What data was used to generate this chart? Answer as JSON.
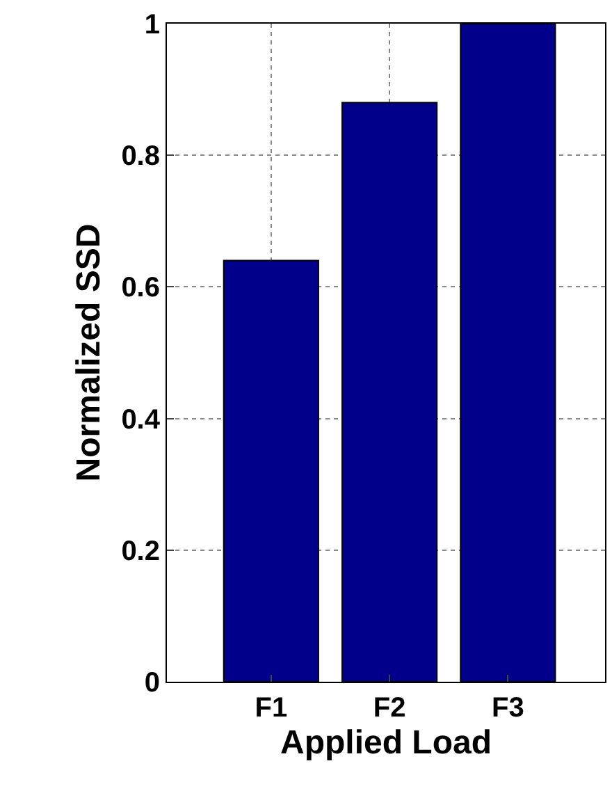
{
  "chart_data": {
    "type": "bar",
    "xlabel": "Applied Load",
    "ylabel": "Normalized SSD",
    "categories": [
      "F1",
      "F2",
      "F3"
    ],
    "values": [
      0.64,
      0.88,
      1.0
    ],
    "color": "#00008b",
    "ylim": [
      0,
      1
    ],
    "yticks": [
      0,
      0.2,
      0.4,
      0.6,
      0.8,
      1
    ],
    "grid": true
  }
}
